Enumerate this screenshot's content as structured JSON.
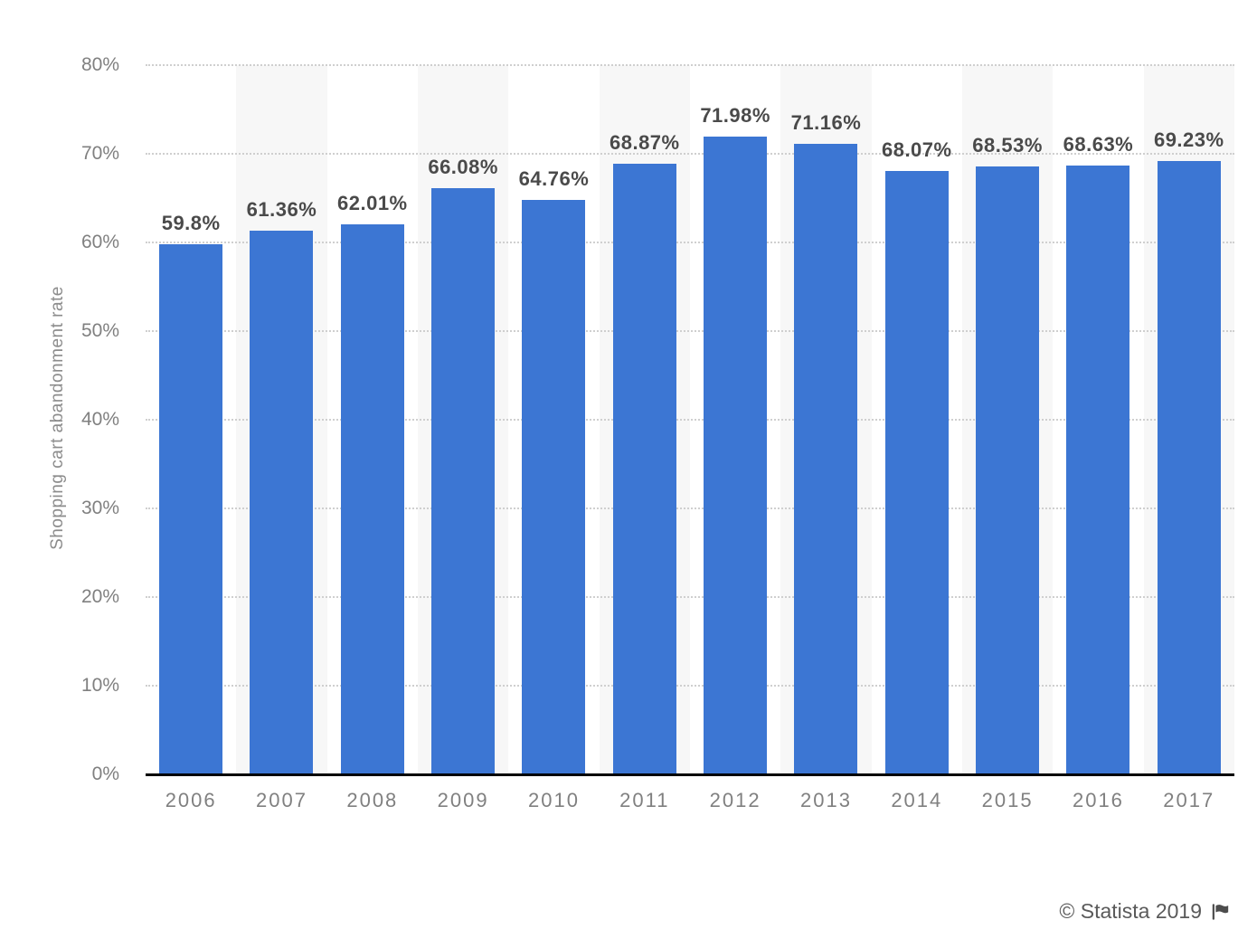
{
  "chart_data": {
    "type": "bar",
    "title": "",
    "categories": [
      "2006",
      "2007",
      "2008",
      "2009",
      "2010",
      "2011",
      "2012",
      "2013",
      "2014",
      "2015",
      "2016",
      "2017"
    ],
    "values": [
      59.8,
      61.36,
      62.01,
      66.08,
      64.76,
      68.87,
      71.98,
      71.16,
      68.07,
      68.53,
      68.63,
      69.23
    ],
    "value_labels": [
      "59.8%",
      "61.36%",
      "62.01%",
      "66.08%",
      "64.76%",
      "68.87%",
      "71.98%",
      "71.16%",
      "68.07%",
      "68.53%",
      "68.63%",
      "69.23%"
    ],
    "xlabel": "",
    "ylabel": "Shopping cart abandonment rate",
    "ylim": [
      0,
      80
    ],
    "y_ticks": [
      "0%",
      "10%",
      "20%",
      "30%",
      "40%",
      "50%",
      "60%",
      "70%",
      "80%"
    ],
    "legend": "none",
    "grid": "horizontal-dotted",
    "bar_color": "#3C76D3",
    "band_color": "#f7f7f7",
    "gridline_color": "#cfcfcf",
    "axis_line_color": "#000000",
    "value_label_color": "#4a4a4a",
    "tick_label_color": "#808080"
  },
  "footer": {
    "copyright": "© Statista 2019",
    "flag_icon": "flag-icon"
  }
}
